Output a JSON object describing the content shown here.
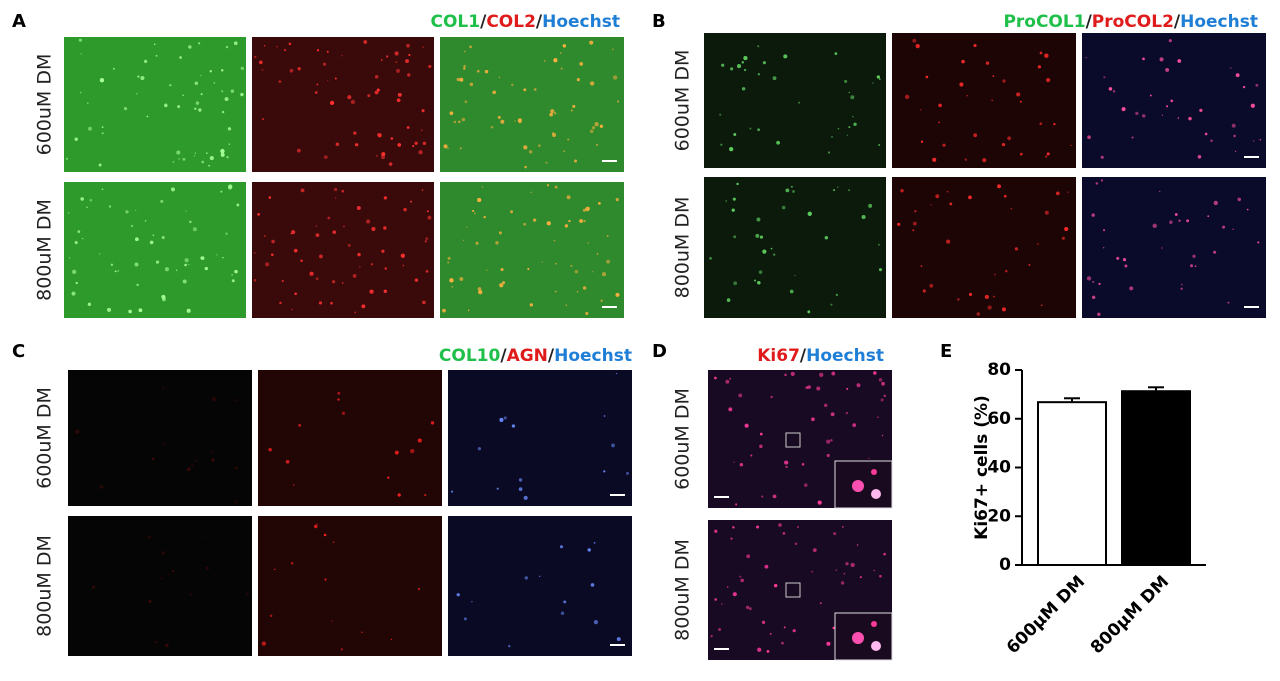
{
  "panels": [
    {
      "label": "A",
      "stain": [
        {
          "text": "COL1",
          "color": "#1fbf4a"
        },
        {
          "text": "/",
          "color": "#222222"
        },
        {
          "text": "COL2",
          "color": "#e01b1b"
        },
        {
          "text": "/",
          "color": "#222222"
        },
        {
          "text": "Hoechst",
          "color": "#1f7fd6"
        }
      ],
      "rows": [
        "600uM DM",
        "800uM DM"
      ]
    },
    {
      "label": "B",
      "stain": [
        {
          "text": "ProCOL1",
          "color": "#1fbf4a"
        },
        {
          "text": "/",
          "color": "#222222"
        },
        {
          "text": "ProCOL2",
          "color": "#e01b1b"
        },
        {
          "text": "/",
          "color": "#222222"
        },
        {
          "text": "Hoechst",
          "color": "#1f7fd6"
        }
      ],
      "rows": [
        "600uM DM",
        "800uM DM"
      ]
    },
    {
      "label": "C",
      "stain": [
        {
          "text": "COL10",
          "color": "#1fbf4a"
        },
        {
          "text": "/",
          "color": "#222222"
        },
        {
          "text": "AGN",
          "color": "#e01b1b"
        },
        {
          "text": "/",
          "color": "#222222"
        },
        {
          "text": "Hoechst",
          "color": "#1f7fd6"
        }
      ],
      "rows": [
        "600uM DM",
        "800uM DM"
      ]
    },
    {
      "label": "D",
      "stain": [
        {
          "text": "Ki67",
          "color": "#e01b1b"
        },
        {
          "text": "/",
          "color": "#222222"
        },
        {
          "text": "Hoechst",
          "color": "#1f7fd6"
        }
      ],
      "rows": [
        "600uM DM",
        "800uM DM"
      ]
    }
  ],
  "chart_data": {
    "type": "bar",
    "panel_label": "E",
    "categories": [
      "600μM DM",
      "800μM DM"
    ],
    "values": [
      66.8,
      71.3
    ],
    "errors": [
      1.6,
      1.6
    ],
    "colors": [
      "#ffffff",
      "#000000"
    ],
    "y_label": "Ki67+ cells (%)",
    "ylim": [
      0,
      80
    ],
    "yticks": [
      0,
      20,
      40,
      60,
      80
    ]
  }
}
